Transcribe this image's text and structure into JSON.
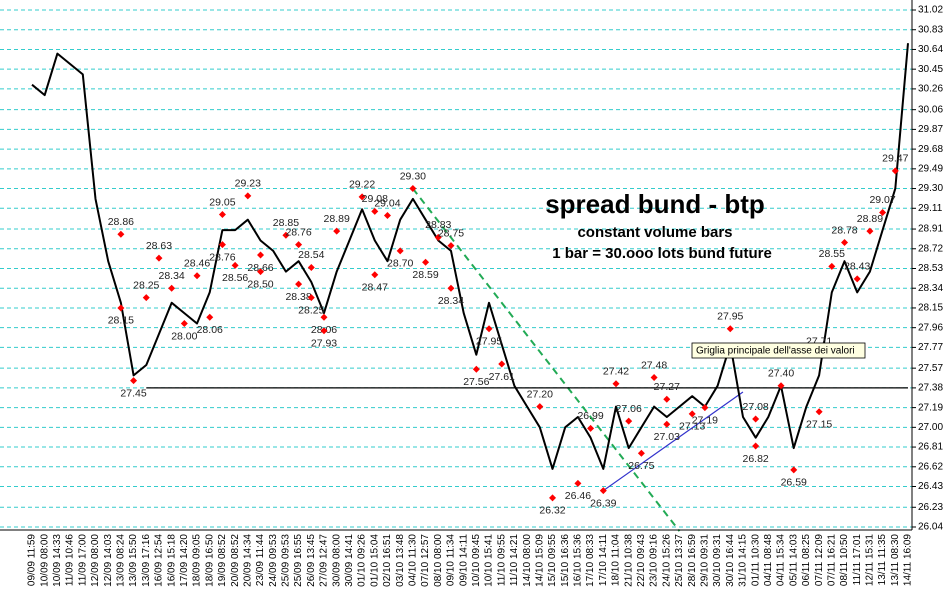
{
  "chart_data": {
    "type": "line",
    "title": "spread bund - btp",
    "subtitle": "constant volume bars",
    "note": "1 bar = 30.ooo lots bund future",
    "tooltip": "Griglia principale dell'asse dei valori",
    "categories": [
      "09/09 11:59",
      "10/09 08:00",
      "10/09 14:33",
      "11/09 10:46",
      "11/09 17:00",
      "12/09 08:00",
      "12/09 14:03",
      "13/09 08:24",
      "13/09 15:50",
      "13/09 17:16",
      "16/09 12:54",
      "16/09 15:18",
      "17/09 14:20",
      "18/09 09:05",
      "18/09 16:50",
      "19/09 08:52",
      "20/09 08:52",
      "20/09 14:34",
      "23/09 11:44",
      "24/09 09:53",
      "25/09 09:53",
      "25/09 16:55",
      "26/09 13:45",
      "27/09 12:47",
      "30/09 08:00",
      "30/09 14:41",
      "01/10 09:26",
      "01/10 15:04",
      "02/10 16:51",
      "03/10 13:48",
      "04/10 11:30",
      "07/10 12:57",
      "08/10 08:00",
      "09/10 11:34",
      "09/10 14:11",
      "10/10 09:45",
      "10/10 15:41",
      "11/10 09:55",
      "11/10 14:21",
      "14/10 08:00",
      "14/10 15:09",
      "15/10 09:55",
      "15/10 16:36",
      "16/10 15:36",
      "17/10 08:33",
      "17/10 14:11",
      "18/10 11:04",
      "21/10 10:38",
      "22/10 09:43",
      "23/10 09:16",
      "24/10 15:26",
      "25/10 13:37",
      "28/10 16:59",
      "29/10 09:31",
      "30/10 09:31",
      "30/10 16:44",
      "31/10 14:15",
      "01/11 10:30",
      "04/11 08:48",
      "04/11 15:34",
      "05/11 14:03",
      "06/11 08:25",
      "07/11 12:09",
      "07/11 16:21",
      "08/11 10:50",
      "11/11 17:01",
      "12/11 15:31",
      "13/11 11:35",
      "13/11 08:30",
      "14/11 16:09"
    ],
    "series": [
      {
        "color": "#000000",
        "values": [
          30.3,
          30.2,
          30.6,
          30.5,
          30.4,
          29.2,
          28.6,
          28.2,
          27.5,
          27.6,
          27.9,
          28.2,
          28.1,
          28.0,
          28.3,
          28.9,
          28.9,
          29.0,
          28.8,
          28.7,
          28.5,
          28.6,
          28.4,
          28.1,
          28.5,
          28.8,
          29.1,
          28.8,
          28.6,
          29.0,
          29.2,
          29.0,
          28.8,
          28.7,
          28.1,
          27.7,
          28.2,
          27.8,
          27.4,
          27.2,
          27.0,
          26.6,
          27.0,
          27.1,
          26.9,
          26.6,
          27.2,
          26.8,
          27.0,
          27.2,
          27.1,
          27.2,
          27.3,
          27.2,
          27.4,
          27.8,
          27.1,
          26.9,
          27.1,
          27.4,
          26.8,
          27.2,
          27.5,
          28.3,
          28.6,
          28.3,
          28.5,
          28.9,
          29.3,
          30.7
        ]
      }
    ],
    "pivot_color": "#ff0000",
    "pivots": [
      {
        "at": "13/09 08:24",
        "value": 28.86
      },
      {
        "at": "13/09 08:24",
        "value": 28.15
      },
      {
        "at": "13/09 15:50",
        "value": 27.45
      },
      {
        "at": "13/09 17:16",
        "value": 28.25
      },
      {
        "at": "16/09 15:18",
        "value": 28.34
      },
      {
        "at": "16/09 12:54",
        "value": 28.63
      },
      {
        "at": "17/09 14:20",
        "value": 28.0,
        "label": "28.00"
      },
      {
        "at": "18/09 09:05",
        "value": 28.46
      },
      {
        "at": "18/09 16:50",
        "value": 28.06
      },
      {
        "at": "19/09 08:52",
        "value": 28.76
      },
      {
        "at": "20/09 08:52",
        "value": 28.56
      },
      {
        "at": "19/09 08:52",
        "value": 29.05
      },
      {
        "at": "20/09 14:34",
        "value": 29.23
      },
      {
        "at": "23/09 11:44",
        "value": 28.66
      },
      {
        "at": "25/09 09:53",
        "value": 28.85
      },
      {
        "at": "25/09 16:55",
        "value": 28.76
      },
      {
        "at": "23/09 11:44",
        "value": 28.5,
        "label": "28.50"
      },
      {
        "at": "25/09 16:55",
        "value": 28.38
      },
      {
        "at": "26/09 13:45",
        "value": 28.54
      },
      {
        "at": "26/09 13:45",
        "value": 28.25
      },
      {
        "at": "27/09 12:47",
        "value": 28.06
      },
      {
        "at": "27/09 12:47",
        "value": 27.93
      },
      {
        "at": "30/09 08:00",
        "value": 28.89
      },
      {
        "at": "01/10 09:26",
        "value": 29.22
      },
      {
        "at": "01/10 15:04",
        "value": 29.08
      },
      {
        "at": "02/10 16:51",
        "value": 29.04
      },
      {
        "at": "01/10 15:04",
        "value": 28.47
      },
      {
        "at": "03/10 13:48",
        "value": 28.7,
        "label": "28.70"
      },
      {
        "at": "04/10 11:30",
        "value": 29.3,
        "label": "29.30"
      },
      {
        "at": "08/10 08:00",
        "value": 28.83
      },
      {
        "at": "09/10 11:34",
        "value": 28.75
      },
      {
        "at": "07/10 12:57",
        "value": 28.59
      },
      {
        "at": "09/10 11:34",
        "value": 28.34
      },
      {
        "at": "10/10 09:45",
        "value": 27.56
      },
      {
        "at": "10/10 15:41",
        "value": 27.95
      },
      {
        "at": "11/10 09:55",
        "value": 27.61
      },
      {
        "at": "14/10 15:09",
        "value": 27.2,
        "label": "27.20"
      },
      {
        "at": "15/10 09:55",
        "value": 26.32
      },
      {
        "at": "16/10 15:36",
        "value": 26.46
      },
      {
        "at": "17/10 08:33",
        "value": 26.99
      },
      {
        "at": "17/10 14:11",
        "value": 26.39
      },
      {
        "at": "18/10 11:04",
        "value": 27.42
      },
      {
        "at": "21/10 10:38",
        "value": 27.06
      },
      {
        "at": "22/10 09:43",
        "value": 26.75
      },
      {
        "at": "23/10 09:16",
        "value": 27.48
      },
      {
        "at": "24/10 15:26",
        "value": 27.27
      },
      {
        "at": "24/10 15:26",
        "value": 27.03
      },
      {
        "at": "28/10 16:59",
        "value": 27.13
      },
      {
        "at": "29/10 09:31",
        "value": 27.19
      },
      {
        "at": "30/10 16:44",
        "value": 27.95
      },
      {
        "at": "01/11 10:30",
        "value": 27.08
      },
      {
        "at": "01/11 10:30",
        "value": 26.82
      },
      {
        "at": "04/11 15:34",
        "value": 27.4,
        "label": "27.40"
      },
      {
        "at": "05/11 14:03",
        "value": 26.59
      },
      {
        "at": "07/11 12:09",
        "value": 27.15
      },
      {
        "at": "07/11 12:09",
        "value": 27.71
      },
      {
        "at": "07/11 16:21",
        "value": 28.55
      },
      {
        "at": "08/11 10:50",
        "value": 28.78
      },
      {
        "at": "11/11 17:01",
        "value": 28.43
      },
      {
        "at": "12/11 15:31",
        "value": 28.89
      },
      {
        "at": "13/11 11:35",
        "value": 29.07
      },
      {
        "at": "13/11 08:30",
        "value": 29.47
      }
    ],
    "trendlines": [
      {
        "x": [
          "04/10 11:30",
          "25/10 13:37"
        ],
        "values": [
          29.3,
          26.0
        ],
        "color": "#22aa55",
        "dashed": true
      },
      {
        "x": [
          "17/10 14:11",
          "31/10 14:15"
        ],
        "values": [
          26.39,
          27.34
        ],
        "color": "#3333cc",
        "dashed": false
      },
      {
        "x": [
          "13/09 17:16",
          "14/11 16:09"
        ],
        "values": [
          27.38,
          27.38
        ],
        "color": "#000000",
        "dashed": false
      }
    ],
    "ylim": [
      26.04,
      31.02
    ],
    "yticks": [
      31.02,
      30.83,
      30.64,
      30.45,
      30.26,
      30.06,
      29.87,
      29.68,
      29.49,
      {
        "value": 29.3,
        "label": "29.30"
      },
      29.11,
      28.91,
      28.72,
      28.53,
      28.34,
      28.15,
      27.96,
      27.77,
      27.57,
      27.38,
      27.19,
      {
        "value": 27.0,
        "label": "27.00"
      },
      26.81,
      26.62,
      26.43,
      26.23,
      26.04
    ],
    "grid": true,
    "grid_color": "#33cccc"
  }
}
